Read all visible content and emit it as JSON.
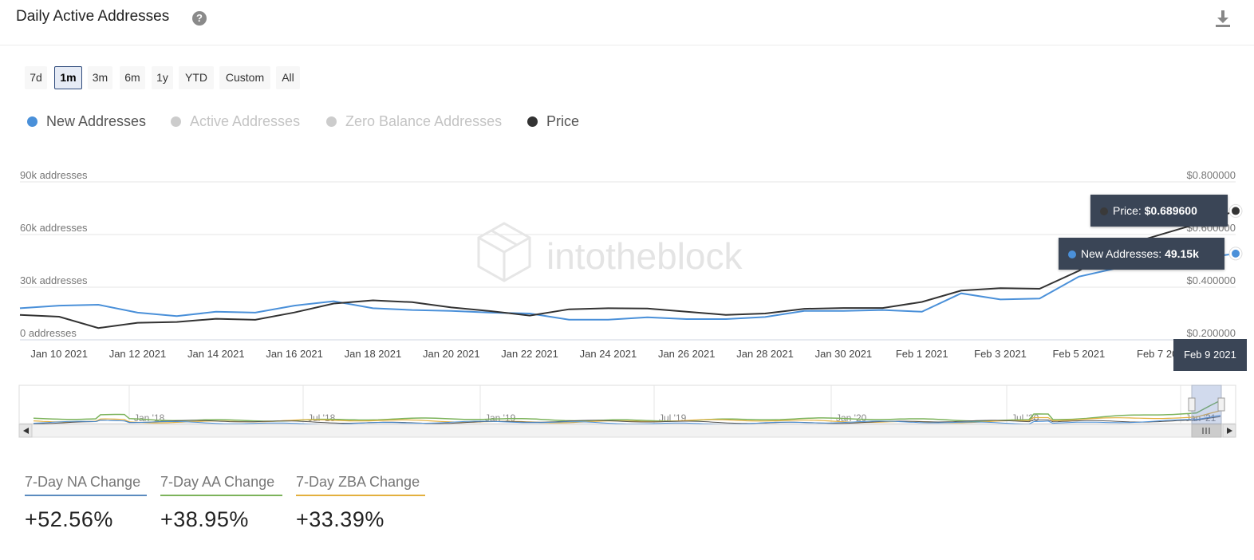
{
  "header": {
    "title": "Daily Active Addresses",
    "help_glyph": "?"
  },
  "ranges": [
    {
      "label": "7d",
      "active": false
    },
    {
      "label": "1m",
      "active": true
    },
    {
      "label": "3m",
      "active": false
    },
    {
      "label": "6m",
      "active": false
    },
    {
      "label": "1y",
      "active": false
    },
    {
      "label": "YTD",
      "active": false
    },
    {
      "label": "Custom",
      "active": false
    },
    {
      "label": "All",
      "active": false
    }
  ],
  "legend": [
    {
      "label": "New Addresses",
      "color": "#4a90d9",
      "enabled": true
    },
    {
      "label": "Active Addresses",
      "color": "#cccccc",
      "enabled": false
    },
    {
      "label": "Zero Balance Addresses",
      "color": "#cccccc",
      "enabled": false
    },
    {
      "label": "Price",
      "color": "#333333",
      "enabled": true
    }
  ],
  "chart_data": {
    "type": "line",
    "watermark": "intotheblock",
    "x": [
      "2021-01-09",
      "2021-01-10",
      "2021-01-11",
      "2021-01-12",
      "2021-01-13",
      "2021-01-14",
      "2021-01-15",
      "2021-01-16",
      "2021-01-17",
      "2021-01-18",
      "2021-01-19",
      "2021-01-20",
      "2021-01-21",
      "2021-01-22",
      "2021-01-23",
      "2021-01-24",
      "2021-01-25",
      "2021-01-26",
      "2021-01-27",
      "2021-01-28",
      "2021-01-29",
      "2021-01-30",
      "2021-01-31",
      "2021-02-01",
      "2021-02-02",
      "2021-02-03",
      "2021-02-04",
      "2021-02-05",
      "2021-02-06",
      "2021-02-07",
      "2021-02-08",
      "2021-02-09"
    ],
    "x_tick_labels": [
      "Jan 10 2021",
      "Jan 12 2021",
      "Jan 14 2021",
      "Jan 16 2021",
      "Jan 18 2021",
      "Jan 20 2021",
      "Jan 22 2021",
      "Jan 24 2021",
      "Jan 26 2021",
      "Jan 28 2021",
      "Jan 30 2021",
      "Feb 1 2021",
      "Feb 3 2021",
      "Feb 5 2021",
      "Feb 7 20"
    ],
    "x_tick_dates": [
      "2021-01-10",
      "2021-01-12",
      "2021-01-14",
      "2021-01-16",
      "2021-01-18",
      "2021-01-20",
      "2021-01-22",
      "2021-01-24",
      "2021-01-26",
      "2021-01-28",
      "2021-01-30",
      "2021-02-01",
      "2021-02-03",
      "2021-02-05",
      "2021-02-07"
    ],
    "x_highlight_label": "Feb 9 2021",
    "y_left": {
      "ticks": [
        "0 addresses",
        "30k addresses",
        "60k addresses",
        "90k addresses"
      ],
      "tick_values": [
        0,
        30000,
        60000,
        90000
      ],
      "range": [
        0,
        90000
      ]
    },
    "y_right": {
      "ticks": [
        "$0.200000",
        "$0.400000",
        "$0.600000",
        "$0.800000"
      ],
      "tick_values": [
        0.2,
        0.4,
        0.6,
        0.8
      ],
      "range": [
        0.2,
        0.8
      ]
    },
    "series": [
      {
        "name": "New Addresses",
        "axis": "left",
        "color": "#4a90d9",
        "values": [
          18000,
          19500,
          20000,
          15500,
          13500,
          16000,
          15500,
          19500,
          22000,
          18000,
          17000,
          16500,
          15500,
          15000,
          11500,
          11500,
          12800,
          11800,
          11800,
          13000,
          16500,
          16500,
          17000,
          16000,
          26500,
          23000,
          23500,
          36000,
          41000,
          43500,
          46000,
          49150
        ]
      },
      {
        "name": "Price",
        "axis": "right",
        "color": "#333333",
        "values": [
          0.295,
          0.288,
          0.245,
          0.265,
          0.268,
          0.28,
          0.276,
          0.304,
          0.338,
          0.35,
          0.343,
          0.323,
          0.309,
          0.292,
          0.316,
          0.32,
          0.319,
          0.307,
          0.295,
          0.3,
          0.318,
          0.321,
          0.321,
          0.344,
          0.387,
          0.396,
          0.394,
          0.462,
          0.552,
          0.596,
          0.64,
          0.6896
        ]
      }
    ],
    "tooltips": [
      {
        "prefix": "Price: ",
        "value": "$0.689600",
        "series": "Price"
      },
      {
        "prefix": "New Addresses: ",
        "value": "49.15k",
        "series": "New Addresses"
      }
    ],
    "navigator": {
      "labels": [
        "Jan '18",
        "Jul '18",
        "Jan '19",
        "Jul '19",
        "Jan '20",
        "Jul '20",
        "Jan '21"
      ]
    }
  },
  "stats": [
    {
      "label": "7-Day NA Change",
      "value": "+52.56%",
      "color": "#5b8bbf"
    },
    {
      "label": "7-Day AA Change",
      "value": "+38.95%",
      "color": "#7cb35b"
    },
    {
      "label": "7-Day ZBA Change",
      "value": "+33.39%",
      "color": "#e3b03e"
    }
  ]
}
